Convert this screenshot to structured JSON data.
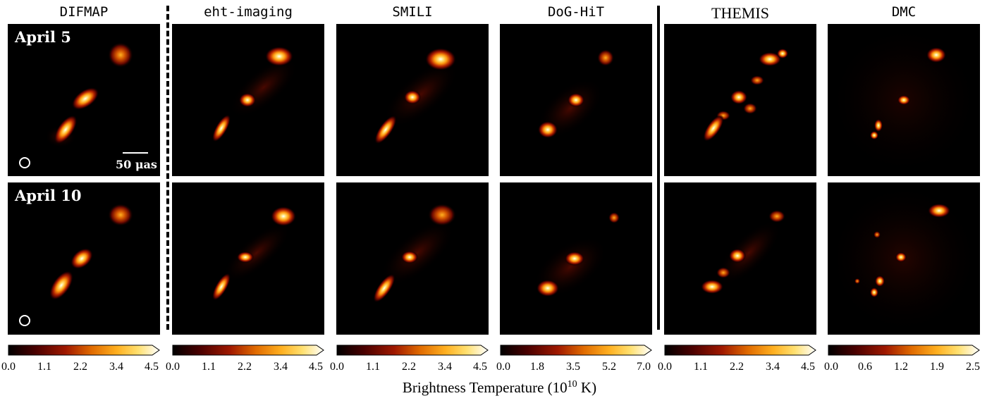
{
  "columns": [
    {
      "title": "DIFMAP",
      "style": "mono",
      "ticks": [
        "0.0",
        "1.1",
        "2.2",
        "3.4",
        "4.5"
      ]
    },
    {
      "title": "eht-imaging",
      "style": "mono",
      "ticks": [
        "0.0",
        "1.1",
        "2.2",
        "3.4",
        "4.5"
      ]
    },
    {
      "title": "SMILI",
      "style": "mono",
      "ticks": [
        "0.0",
        "1.1",
        "2.2",
        "3.4",
        "4.5"
      ]
    },
    {
      "title": "DoG-HiT",
      "style": "mono",
      "ticks": [
        "0.0",
        "1.8",
        "3.5",
        "5.2",
        "7.0"
      ]
    },
    {
      "title": "THEMIS",
      "style": "serif",
      "ticks": [
        "0.0",
        "1.1",
        "2.2",
        "3.4",
        "4.5"
      ]
    },
    {
      "title": "DMC",
      "style": "mono",
      "ticks": [
        "0.0",
        "0.6",
        "1.2",
        "1.9",
        "2.5"
      ]
    }
  ],
  "rows": [
    {
      "label": "April 5"
    },
    {
      "label": "April 10"
    }
  ],
  "scale_bar": "50 μas",
  "colorbar_label": "Brightness Temperature (10",
  "colorbar_label_exp": "10",
  "colorbar_label_unit": " K)",
  "colormap": [
    "#000000",
    "#4a0000",
    "#a01800",
    "#e06a00",
    "#ffb020",
    "#ffe070",
    "#ffffff"
  ]
}
